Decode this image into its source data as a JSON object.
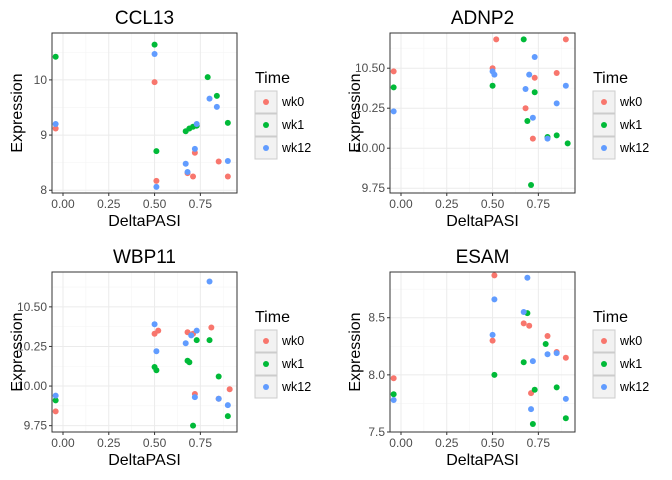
{
  "colors": {
    "wk0": "#F8766D",
    "wk1": "#00BA38",
    "wk12": "#619CFF",
    "panel_border": "#333333",
    "grid_major": "#EBEBEB",
    "grid_minor": "#F5F5F5"
  },
  "chart_data": [
    {
      "type": "scatter",
      "title": "CCL13",
      "xlabel": "DeltaPASI",
      "ylabel": "Expression",
      "xlim": [
        -0.06,
        0.95
      ],
      "ylim": [
        7.95,
        10.85
      ],
      "xticks": [
        0.0,
        0.25,
        0.5,
        0.75
      ],
      "xtick_labels": [
        "0.00",
        "0.25",
        "0.50",
        "0.75"
      ],
      "yticks": [
        8,
        9,
        10
      ],
      "ytick_labels": [
        "8",
        "9",
        "10"
      ],
      "grid": true,
      "legend": {
        "title": "Time",
        "position": "right",
        "entries": [
          "wk0",
          "wk1",
          "wk12"
        ]
      },
      "series": [
        {
          "name": "wk0",
          "points": [
            [
              -0.04,
              9.12
            ],
            [
              0.5,
              9.96
            ],
            [
              0.51,
              8.17
            ],
            [
              0.68,
              8.31
            ],
            [
              0.71,
              8.25
            ],
            [
              0.72,
              8.68
            ],
            [
              0.85,
              8.52
            ],
            [
              0.9,
              8.25
            ]
          ]
        },
        {
          "name": "wk1",
          "points": [
            [
              -0.04,
              10.42
            ],
            [
              0.5,
              10.64
            ],
            [
              0.51,
              8.71
            ],
            [
              0.67,
              9.07
            ],
            [
              0.69,
              9.12
            ],
            [
              0.71,
              9.15
            ],
            [
              0.73,
              9.17
            ],
            [
              0.79,
              10.05
            ],
            [
              0.84,
              9.71
            ],
            [
              0.9,
              9.22
            ]
          ]
        },
        {
          "name": "wk12",
          "points": [
            [
              -0.04,
              9.2
            ],
            [
              0.5,
              10.47
            ],
            [
              0.51,
              8.06
            ],
            [
              0.67,
              8.48
            ],
            [
              0.68,
              8.33
            ],
            [
              0.72,
              8.75
            ],
            [
              0.73,
              9.2
            ],
            [
              0.8,
              9.66
            ],
            [
              0.84,
              9.51
            ],
            [
              0.9,
              8.53
            ]
          ]
        }
      ]
    },
    {
      "type": "scatter",
      "title": "ADNP2",
      "xlabel": "DeltaPASI",
      "ylabel": "Expression",
      "xlim": [
        -0.06,
        0.95
      ],
      "ylim": [
        9.72,
        10.72
      ],
      "xticks": [
        0.0,
        0.25,
        0.5,
        0.75
      ],
      "xtick_labels": [
        "0.00",
        "0.25",
        "0.50",
        "0.75"
      ],
      "yticks": [
        9.75,
        10.0,
        10.25,
        10.5
      ],
      "ytick_labels": [
        "9.75",
        "10.00",
        "10.25",
        "10.50"
      ],
      "grid": true,
      "legend": {
        "title": "Time",
        "position": "right",
        "entries": [
          "wk0",
          "wk1",
          "wk12"
        ]
      },
      "series": [
        {
          "name": "wk0",
          "points": [
            [
              -0.04,
              10.48
            ],
            [
              0.5,
              10.5
            ],
            [
              0.52,
              10.68
            ],
            [
              0.68,
              10.25
            ],
            [
              0.72,
              10.06
            ],
            [
              0.73,
              10.44
            ],
            [
              0.85,
              10.47
            ],
            [
              0.9,
              10.68
            ]
          ]
        },
        {
          "name": "wk1",
          "points": [
            [
              -0.04,
              10.38
            ],
            [
              0.5,
              10.39
            ],
            [
              0.67,
              10.68
            ],
            [
              0.69,
              10.17
            ],
            [
              0.71,
              9.77
            ],
            [
              0.73,
              10.35
            ],
            [
              0.8,
              10.07
            ],
            [
              0.85,
              10.08
            ],
            [
              0.91,
              10.03
            ]
          ]
        },
        {
          "name": "wk12",
          "points": [
            [
              -0.04,
              10.23
            ],
            [
              0.5,
              10.48
            ],
            [
              0.51,
              10.46
            ],
            [
              0.68,
              10.37
            ],
            [
              0.7,
              10.46
            ],
            [
              0.72,
              10.19
            ],
            [
              0.73,
              10.57
            ],
            [
              0.8,
              10.06
            ],
            [
              0.85,
              10.28
            ],
            [
              0.9,
              10.39
            ]
          ]
        }
      ]
    },
    {
      "type": "scatter",
      "title": "WBP11",
      "xlabel": "DeltaPASI",
      "ylabel": "Expression",
      "xlim": [
        -0.06,
        0.95
      ],
      "ylim": [
        9.71,
        10.72
      ],
      "xticks": [
        0.0,
        0.25,
        0.5,
        0.75
      ],
      "xtick_labels": [
        "0.00",
        "0.25",
        "0.50",
        "0.75"
      ],
      "yticks": [
        9.75,
        10.0,
        10.25,
        10.5
      ],
      "ytick_labels": [
        "9.75",
        "10.00",
        "10.25",
        "10.50"
      ],
      "grid": true,
      "legend": {
        "title": "Time",
        "position": "right",
        "entries": [
          "wk0",
          "wk1",
          "wk12"
        ]
      },
      "series": [
        {
          "name": "wk0",
          "points": [
            [
              -0.04,
              9.84
            ],
            [
              0.5,
              10.33
            ],
            [
              0.52,
              10.35
            ],
            [
              0.68,
              10.34
            ],
            [
              0.71,
              10.33
            ],
            [
              0.72,
              9.95
            ],
            [
              0.81,
              10.37
            ],
            [
              0.85,
              9.92
            ],
            [
              0.91,
              9.98
            ]
          ]
        },
        {
          "name": "wk1",
          "points": [
            [
              -0.04,
              9.91
            ],
            [
              0.5,
              10.12
            ],
            [
              0.51,
              10.1
            ],
            [
              0.68,
              10.16
            ],
            [
              0.69,
              10.15
            ],
            [
              0.71,
              9.75
            ],
            [
              0.73,
              10.29
            ],
            [
              0.8,
              10.29
            ],
            [
              0.85,
              10.06
            ],
            [
              0.9,
              9.81
            ]
          ]
        },
        {
          "name": "wk12",
          "points": [
            [
              -0.04,
              9.94
            ],
            [
              0.5,
              10.39
            ],
            [
              0.51,
              10.22
            ],
            [
              0.67,
              10.27
            ],
            [
              0.7,
              10.32
            ],
            [
              0.72,
              9.93
            ],
            [
              0.73,
              10.35
            ],
            [
              0.8,
              10.66
            ],
            [
              0.85,
              9.92
            ],
            [
              0.9,
              9.88
            ]
          ]
        }
      ]
    },
    {
      "type": "scatter",
      "title": "ESAM",
      "xlabel": "DeltaPASI",
      "ylabel": "Expression",
      "xlim": [
        -0.06,
        0.95
      ],
      "ylim": [
        7.5,
        8.9
      ],
      "xticks": [
        0.0,
        0.25,
        0.5,
        0.75
      ],
      "xtick_labels": [
        "0.00",
        "0.25",
        "0.50",
        "0.75"
      ],
      "yticks": [
        7.5,
        8.0,
        8.5
      ],
      "ytick_labels": [
        "7.5",
        "8.0",
        "8.5"
      ],
      "grid": true,
      "legend": {
        "title": "Time",
        "position": "right",
        "entries": [
          "wk0",
          "wk1",
          "wk12"
        ]
      },
      "series": [
        {
          "name": "wk0",
          "points": [
            [
              -0.04,
              7.97
            ],
            [
              0.5,
              8.3
            ],
            [
              0.51,
              8.87
            ],
            [
              0.67,
              8.45
            ],
            [
              0.7,
              8.43
            ],
            [
              0.71,
              7.84
            ],
            [
              0.8,
              8.34
            ],
            [
              0.85,
              8.2
            ],
            [
              0.9,
              8.15
            ]
          ]
        },
        {
          "name": "wk1",
          "points": [
            [
              -0.04,
              7.83
            ],
            [
              0.51,
              8.0
            ],
            [
              0.67,
              8.11
            ],
            [
              0.69,
              8.54
            ],
            [
              0.72,
              7.57
            ],
            [
              0.73,
              7.87
            ],
            [
              0.79,
              8.27
            ],
            [
              0.85,
              7.89
            ],
            [
              0.9,
              7.62
            ]
          ]
        },
        {
          "name": "wk12",
          "points": [
            [
              -0.04,
              7.78
            ],
            [
              0.5,
              8.35
            ],
            [
              0.51,
              8.66
            ],
            [
              0.67,
              8.55
            ],
            [
              0.69,
              8.85
            ],
            [
              0.71,
              7.7
            ],
            [
              0.72,
              8.12
            ],
            [
              0.8,
              8.18
            ],
            [
              0.85,
              8.19
            ],
            [
              0.9,
              7.79
            ]
          ]
        }
      ]
    }
  ]
}
